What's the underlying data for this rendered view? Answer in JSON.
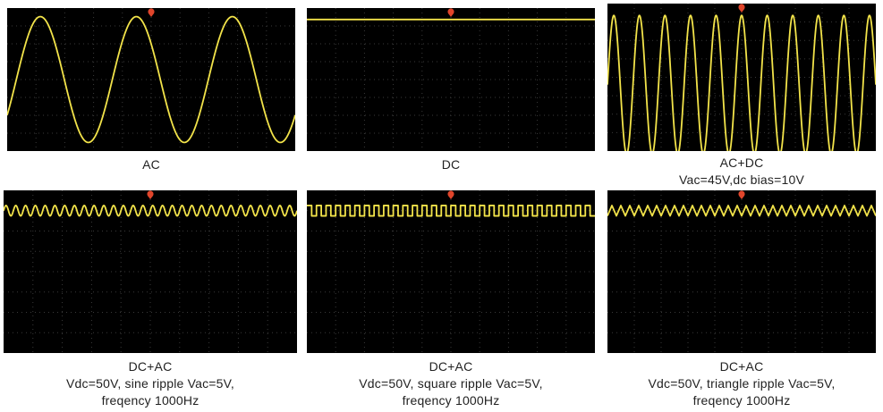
{
  "colors": {
    "screen": "#000000",
    "trace": "#f2e34a",
    "graticule": "#3a3a3a",
    "trigger_marker": "#e0452b",
    "caption_text": "#222222"
  },
  "icons": {
    "trigger_marker": "trigger-marker-icon"
  },
  "chart_data": [
    {
      "type": "line",
      "waveform": "sine",
      "caption_lines": [
        "AC"
      ],
      "cycles_shown": 3.0,
      "level": 0.5,
      "amplitude": 0.44,
      "grid": true
    },
    {
      "type": "line",
      "waveform": "flat",
      "caption_lines": [
        "DC"
      ],
      "level": 0.92,
      "amplitude": 0,
      "grid": true
    },
    {
      "type": "line",
      "waveform": "sine",
      "caption_lines": [
        "AC+DC",
        "Vac=45V,dc bias=10V"
      ],
      "cycles_shown": 10.5,
      "level": 0.45,
      "amplitude": 0.47,
      "grid": true
    },
    {
      "type": "line",
      "waveform": "sine",
      "caption_lines": [
        "DC+AC",
        "Vdc=50V, sine ripple Vac=5V,",
        "freqency 1000Hz"
      ],
      "cycles_shown": 30,
      "level": 0.875,
      "amplitude": 0.032,
      "grid": true
    },
    {
      "type": "line",
      "waveform": "square",
      "caption_lines": [
        "DC+AC",
        "Vdc=50V, square ripple Vac=5V,",
        "freqency 1000Hz"
      ],
      "cycles_shown": 30,
      "level": 0.875,
      "amplitude": 0.032,
      "grid": true
    },
    {
      "type": "line",
      "waveform": "triangle",
      "caption_lines": [
        "DC+AC",
        "Vdc=50V, triangle ripple Vac=5V,",
        "freqency 1000Hz"
      ],
      "cycles_shown": 30,
      "level": 0.875,
      "amplitude": 0.032,
      "grid": true
    }
  ]
}
